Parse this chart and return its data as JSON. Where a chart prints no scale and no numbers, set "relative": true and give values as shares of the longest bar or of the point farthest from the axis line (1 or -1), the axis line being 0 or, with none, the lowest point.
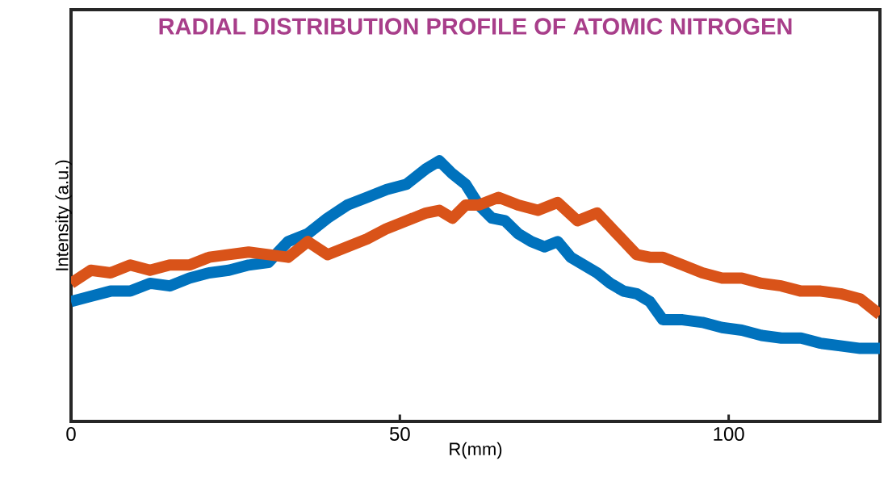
{
  "chart_data": {
    "type": "line",
    "title": "RADIAL DISTRIBUTION PROFILE OF ATOMIC NITROGEN",
    "xlabel": "R(mm)",
    "ylabel": "Intensity (a.u.)",
    "relative": true,
    "xlim": [
      0,
      123
    ],
    "xticks": [
      0,
      50,
      100
    ],
    "line_style": "solid",
    "series": [
      {
        "color": "#0072bd",
        "x": [
          0,
          3,
          6,
          9,
          12,
          15,
          18,
          21,
          24,
          27,
          30,
          33,
          36,
          39,
          42,
          45,
          48,
          51,
          54,
          56,
          58,
          60,
          62,
          64,
          66,
          68,
          70,
          72,
          74,
          76,
          78,
          80,
          82,
          84,
          86,
          88,
          90,
          93,
          96,
          99,
          102,
          105,
          108,
          111,
          114,
          117,
          120,
          123
        ],
        "values": [
          0.46,
          0.48,
          0.5,
          0.5,
          0.53,
          0.52,
          0.55,
          0.57,
          0.58,
          0.6,
          0.61,
          0.69,
          0.72,
          0.78,
          0.83,
          0.86,
          0.89,
          0.91,
          0.97,
          1.0,
          0.95,
          0.91,
          0.83,
          0.78,
          0.77,
          0.72,
          0.69,
          0.67,
          0.69,
          0.63,
          0.6,
          0.57,
          0.53,
          0.5,
          0.49,
          0.46,
          0.39,
          0.39,
          0.38,
          0.36,
          0.35,
          0.33,
          0.32,
          0.32,
          0.3,
          0.29,
          0.28,
          0.28
        ]
      },
      {
        "color": "#d95319",
        "x": [
          0,
          3,
          6,
          9,
          12,
          15,
          18,
          21,
          24,
          27,
          30,
          33,
          36,
          39,
          42,
          45,
          48,
          51,
          54,
          56,
          58,
          60,
          62,
          65,
          68,
          71,
          74,
          77,
          80,
          83,
          86,
          88,
          90,
          93,
          96,
          99,
          102,
          105,
          108,
          111,
          114,
          117,
          120,
          123
        ],
        "values": [
          0.53,
          0.58,
          0.57,
          0.6,
          0.58,
          0.6,
          0.6,
          0.63,
          0.64,
          0.65,
          0.64,
          0.63,
          0.69,
          0.64,
          0.67,
          0.7,
          0.74,
          0.77,
          0.8,
          0.81,
          0.78,
          0.83,
          0.83,
          0.86,
          0.83,
          0.81,
          0.84,
          0.77,
          0.8,
          0.72,
          0.64,
          0.63,
          0.63,
          0.6,
          0.57,
          0.55,
          0.55,
          0.53,
          0.52,
          0.5,
          0.5,
          0.49,
          0.47,
          0.41
        ]
      }
    ]
  }
}
